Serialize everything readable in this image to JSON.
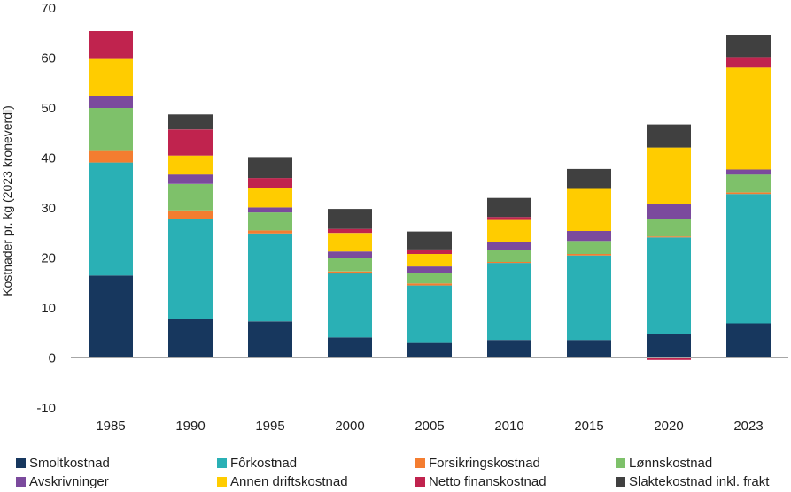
{
  "chart_data": {
    "type": "bar",
    "stacked": true,
    "title": "",
    "xlabel": "",
    "ylabel": "Kostnader pr. kg (2023 kroneverdi)",
    "ylim": [
      -10,
      70
    ],
    "yticks": [
      "-10",
      "0",
      "10",
      "20",
      "30",
      "40",
      "50",
      "60",
      "70"
    ],
    "grid": false,
    "legend_position": "bottom",
    "categories": [
      "1985",
      "1990",
      "1995",
      "2000",
      "2005",
      "2010",
      "2015",
      "2020",
      "2023"
    ],
    "series": [
      {
        "name": "Smoltkostnad",
        "color": "#17375e",
        "values": [
          16.5,
          7.8,
          7.3,
          4.1,
          3.0,
          3.6,
          3.6,
          4.8,
          6.9
        ]
      },
      {
        "name": "Fôrkostnad",
        "color": "#2ab0b5",
        "values": [
          22.6,
          20.0,
          17.6,
          12.8,
          11.5,
          15.4,
          16.9,
          19.3,
          25.9
        ]
      },
      {
        "name": "Forsikringskostnad",
        "color": "#f47d30",
        "values": [
          2.3,
          1.7,
          0.6,
          0.4,
          0.4,
          0.2,
          0.3,
          0.2,
          0.3
        ]
      },
      {
        "name": "Lønnskostnad",
        "color": "#7ec16a",
        "values": [
          8.6,
          5.3,
          3.6,
          2.8,
          2.1,
          2.3,
          2.6,
          3.5,
          3.6
        ]
      },
      {
        "name": "Avskrivninger",
        "color": "#7b4a9d",
        "values": [
          2.4,
          1.9,
          1.0,
          1.2,
          1.3,
          1.6,
          2.0,
          3.0,
          1.0
        ]
      },
      {
        "name": "Annen driftskostnad",
        "color": "#ffcc00",
        "values": [
          7.4,
          3.8,
          3.9,
          3.7,
          2.5,
          4.5,
          8.4,
          11.3,
          20.4
        ]
      },
      {
        "name": "Netto finanskostnad",
        "color": "#c0234e",
        "values": [
          5.6,
          5.2,
          2.0,
          0.8,
          0.9,
          0.6,
          0.0,
          -0.4,
          2.1
        ]
      },
      {
        "name": "Slaktekostnad inkl. frakt",
        "color": "#404040",
        "values": [
          0.0,
          3.0,
          4.2,
          4.0,
          3.6,
          3.8,
          4.0,
          4.6,
          4.4
        ]
      }
    ]
  }
}
